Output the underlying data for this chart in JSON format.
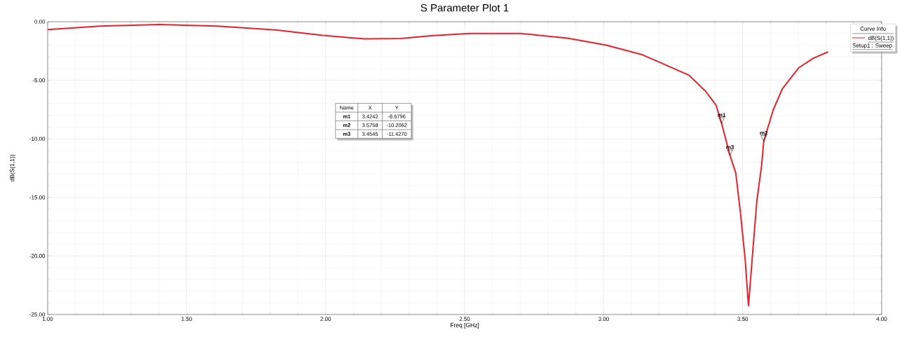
{
  "chart_data": {
    "type": "line",
    "title": "S Parameter Plot 1",
    "xlabel": "Freq [GHz]",
    "ylabel": "dB(S(1,1))",
    "legend_title": "Curve Info",
    "legend": "top right",
    "grid": true,
    "marker": "none",
    "line_style": "solid",
    "xlim": [
      1,
      4
    ],
    "ylim": [
      -25,
      0
    ],
    "xticks": [
      {
        "value": 1,
        "label": "1.00"
      },
      {
        "value": 1.5,
        "label": "1.50"
      },
      {
        "value": 2,
        "label": "2.00"
      },
      {
        "value": 2.5,
        "label": "2.50"
      },
      {
        "value": 3,
        "label": "3.00"
      },
      {
        "value": 3.5,
        "label": "3.50"
      },
      {
        "value": 4,
        "label": "4.00"
      }
    ],
    "yticks": [
      {
        "value": -25,
        "label": "-25.00"
      },
      {
        "value": -20,
        "label": "-20.00"
      },
      {
        "value": -15,
        "label": "-15.00"
      },
      {
        "value": -10,
        "label": "-10.00"
      },
      {
        "value": -5,
        "label": "-5.00"
      },
      {
        "value": 0,
        "label": "0.00"
      }
    ],
    "series": [
      {
        "name": "dB(S(1,1))",
        "color": "#e8202a",
        "x": [
          1.0,
          1.19,
          1.4,
          1.61,
          1.82,
          1.99,
          2.14,
          2.27,
          2.38,
          2.52,
          2.7,
          2.87,
          3.01,
          3.14,
          3.198,
          3.307,
          3.366,
          3.404,
          3.4242,
          3.4545,
          3.475,
          3.492,
          3.509,
          3.521,
          3.534,
          3.551,
          3.568,
          3.5758,
          3.61,
          3.643,
          3.702,
          3.753,
          3.807
        ],
        "values": [
          -0.67,
          -0.37,
          -0.24,
          -0.37,
          -0.7,
          -1.17,
          -1.47,
          -1.44,
          -1.2,
          -1.0,
          -1.0,
          -1.4,
          -2.0,
          -2.83,
          -3.43,
          -4.57,
          -5.92,
          -7.12,
          -8.68,
          -11.43,
          -12.9,
          -16.3,
          -20.3,
          -24.26,
          -20.3,
          -15.3,
          -12.3,
          -10.21,
          -7.52,
          -5.72,
          -3.93,
          -3.13,
          -2.57
        ]
      }
    ],
    "annotations": [
      {
        "text": "m1",
        "x": 3.4242,
        "y": -8.6796
      },
      {
        "text": "m2",
        "x": 3.5758,
        "y": -10.2062
      },
      {
        "text": "m3",
        "x": 3.4545,
        "y": -11.427
      },
      "Name",
      "X",
      "Y",
      "m1",
      "3.4242",
      "-8.6796",
      "m2",
      "3.5758",
      "-10.2062",
      "m3",
      "3.4545",
      "-11.4270",
      "Setup1 : Sweep"
    ]
  }
}
